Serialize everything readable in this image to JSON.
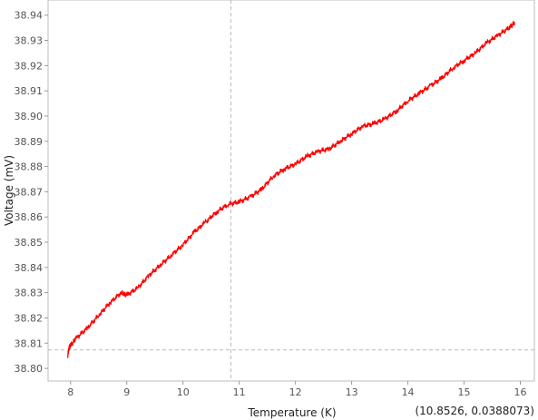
{
  "chart_data": {
    "type": "line",
    "title": "",
    "xlabel": "Temperature (K)",
    "ylabel": "Voltage (mV)",
    "xlim": [
      7.6,
      16.25
    ],
    "ylim": [
      38.795,
      38.946
    ],
    "x_ticks": [
      8,
      9,
      10,
      11,
      12,
      13,
      14,
      15,
      16
    ],
    "y_ticks": [
      38.8,
      38.81,
      38.82,
      38.83,
      38.84,
      38.85,
      38.86,
      38.87,
      38.88,
      38.89,
      38.9,
      38.91,
      38.92,
      38.93,
      38.94
    ],
    "y_tick_labels": [
      "38.80",
      "38.81",
      "38.82",
      "38.83",
      "38.84",
      "38.85",
      "38.86",
      "38.87",
      "38.88",
      "38.89",
      "38.90",
      "38.91",
      "38.92",
      "38.93",
      "38.94"
    ],
    "grid": false,
    "line_color": "#ff0000",
    "crosshair": {
      "x": 10.8526,
      "y": 38.8073
    },
    "series": [
      {
        "x": [
          7.95,
          7.97,
          8.0,
          8.1,
          8.3,
          8.5,
          8.7,
          8.9,
          9.0,
          9.2,
          9.4,
          9.6,
          9.8,
          10.0,
          10.2,
          10.4,
          10.6,
          10.8,
          11.0,
          11.2,
          11.4,
          11.6,
          11.8,
          12.0,
          12.2,
          12.4,
          12.6,
          12.8,
          13.0,
          13.2,
          13.4,
          13.6,
          13.8,
          14.0,
          14.2,
          14.4,
          14.6,
          14.8,
          15.0,
          15.2,
          15.4,
          15.6,
          15.8,
          15.9
        ],
        "values": [
          38.805,
          38.808,
          38.809,
          38.812,
          38.816,
          38.821,
          38.826,
          38.83,
          38.829,
          38.832,
          38.837,
          38.841,
          38.845,
          38.849,
          38.854,
          38.858,
          38.862,
          38.865,
          38.866,
          38.868,
          38.871,
          38.876,
          38.879,
          38.881,
          38.884,
          38.886,
          38.887,
          38.89,
          38.893,
          38.896,
          38.897,
          38.899,
          38.902,
          38.906,
          38.909,
          38.912,
          38.915,
          38.919,
          38.922,
          38.925,
          38.929,
          38.932,
          38.935,
          38.937
        ]
      }
    ]
  },
  "readout": "(10.8526, 0.0388073)"
}
